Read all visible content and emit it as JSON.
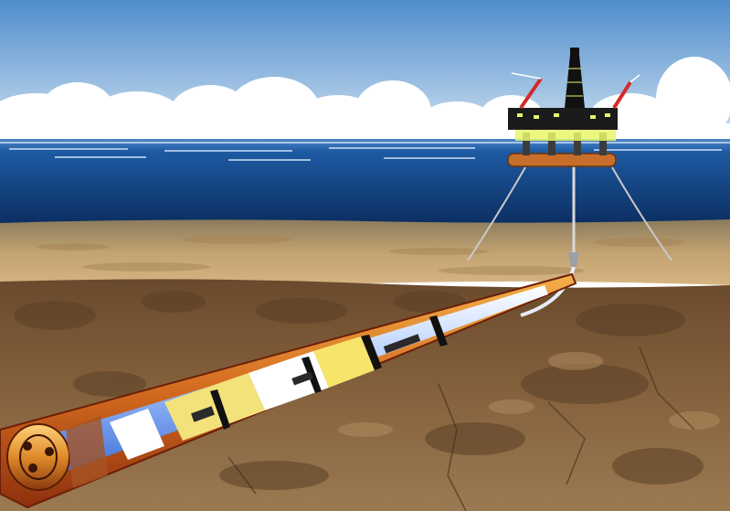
{
  "image": {
    "subject": "offshore-drilling-rig-with-horizontal-wellbore",
    "colors": {
      "sky_top": "#5f96cf",
      "sky_bottom": "#cfe1ef",
      "cloud": "#ffffff",
      "sea_surface": "#1f5fa6",
      "sea_deep": "#0b2f63",
      "seabed": "#c9a877",
      "soil": "#7b5a3a",
      "soil_dark": "#5a3f27",
      "casing_outer": "#c0561a",
      "casing_inner": "#ef9a2f",
      "pipe_blue": "#8fb6ff",
      "pipe_white": "#ffffff",
      "pipe_yellow": "#f4e27a",
      "rig_deck": "#1b1b1b",
      "rig_lights": "#e8f66b",
      "crane_red": "#d42a2a"
    }
  }
}
